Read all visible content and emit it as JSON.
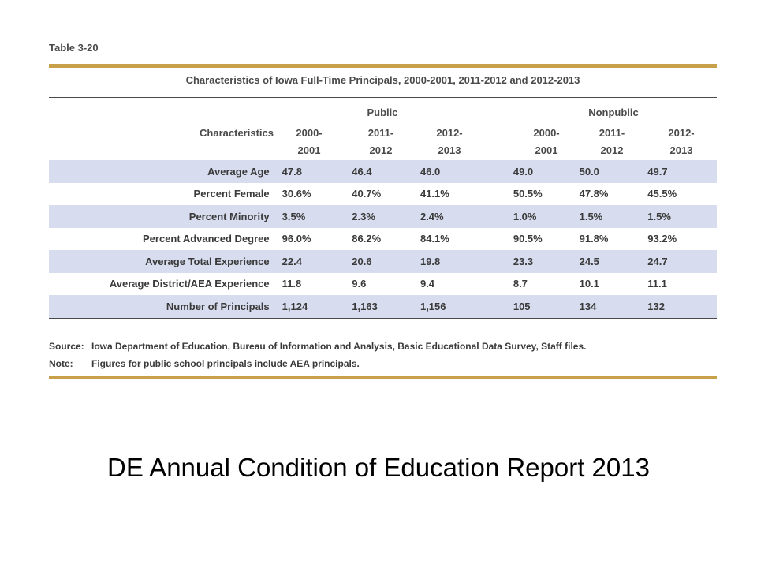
{
  "table_label": "Table 3-20",
  "title": "Characteristics of Iowa Full-Time Principals, 2000-2001, 2011-2012 and 2012-2013",
  "groups": {
    "public": "Public",
    "nonpublic": "Nonpublic"
  },
  "header": {
    "characteristics": "Characteristics",
    "years": [
      [
        "2000-",
        "2001"
      ],
      [
        "2011-",
        "2012"
      ],
      [
        "2012-",
        "2013"
      ],
      [
        "2000-",
        "2001"
      ],
      [
        "2011-",
        "2012"
      ],
      [
        "2012-",
        "2013"
      ]
    ]
  },
  "rows": [
    {
      "label": "Average Age",
      "values": [
        "47.8",
        "46.4",
        "46.0",
        "49.0",
        "50.0",
        "49.7"
      ]
    },
    {
      "label": "Percent Female",
      "values": [
        "30.6%",
        "40.7%",
        "41.1%",
        "50.5%",
        "47.8%",
        "45.5%"
      ]
    },
    {
      "label": "Percent Minority",
      "values": [
        "3.5%",
        "2.3%",
        "2.4%",
        "1.0%",
        "1.5%",
        "1.5%"
      ]
    },
    {
      "label": "Percent Advanced Degree",
      "values": [
        "96.0%",
        "86.2%",
        "84.1%",
        "90.5%",
        "91.8%",
        "93.2%"
      ]
    },
    {
      "label": "Average Total Experience",
      "values": [
        "22.4",
        "20.6",
        "19.8",
        "23.3",
        "24.5",
        "24.7"
      ]
    },
    {
      "label": "Average District/AEA Experience",
      "values": [
        "11.8",
        "9.6",
        "9.4",
        "8.7",
        "10.1",
        "11.1"
      ]
    },
    {
      "label": "Number of Principals",
      "values": [
        "1,124",
        "1,163",
        "1,156",
        "105",
        "134",
        "132"
      ]
    }
  ],
  "source": {
    "label": "Source:",
    "text": "Iowa Department of Education, Bureau of Information and Analysis, Basic Educational Data Survey, Staff files."
  },
  "note": {
    "label": "Note:",
    "text": "Figures for public school principals include AEA principals."
  },
  "caption": "DE Annual Condition of Education Report 2013",
  "colors": {
    "accent_rule": "#c8a04a",
    "row_shade": "#d7dcee"
  }
}
